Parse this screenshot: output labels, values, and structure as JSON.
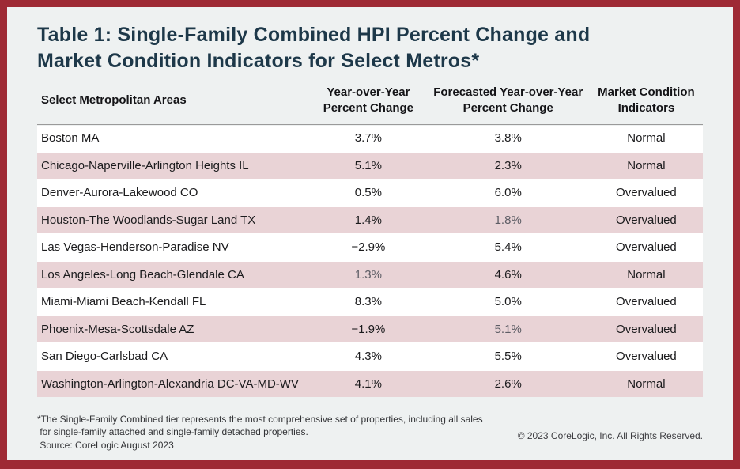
{
  "colors": {
    "frame_border": "#9e2a35",
    "page_background": "#eef1f1",
    "row_white": "#ffffff",
    "row_pink": "#e9d3d6",
    "title_navy": "#1d3849",
    "text_dark": "#1b1b1d",
    "text_muted": "#5d5d65",
    "header_rule": "#9a9a9a"
  },
  "title": "Table 1: Single-Family Combined HPI Percent Change and\nMarket Condition Indicators for Select Metros*",
  "table": {
    "columns": [
      "Select Metropolitan Areas",
      "Year-over-Year\nPercent Change",
      "Forecasted Year-over-Year\nPercent Change",
      "Market Condition\nIndicators"
    ],
    "rows": [
      {
        "metro": "Boston MA",
        "yoy": "3.7%",
        "forecast": "3.8%",
        "indicator": "Normal",
        "yoy_muted": false,
        "forecast_muted": false
      },
      {
        "metro": "Chicago-Naperville-Arlington Heights IL",
        "yoy": "5.1%",
        "forecast": "2.3%",
        "indicator": "Normal",
        "yoy_muted": false,
        "forecast_muted": false
      },
      {
        "metro": "Denver-Aurora-Lakewood CO",
        "yoy": "0.5%",
        "forecast": "6.0%",
        "indicator": "Overvalued",
        "yoy_muted": false,
        "forecast_muted": false
      },
      {
        "metro": "Houston-The Woodlands-Sugar Land TX",
        "yoy": "1.4%",
        "forecast": "1.8%",
        "indicator": "Overvalued",
        "yoy_muted": false,
        "forecast_muted": true
      },
      {
        "metro": "Las Vegas-Henderson-Paradise NV",
        "yoy": "−2.9%",
        "forecast": "5.4%",
        "indicator": "Overvalued",
        "yoy_muted": false,
        "forecast_muted": false
      },
      {
        "metro": "Los Angeles-Long Beach-Glendale CA",
        "yoy": "1.3%",
        "forecast": "4.6%",
        "indicator": "Normal",
        "yoy_muted": true,
        "forecast_muted": false
      },
      {
        "metro": "Miami-Miami Beach-Kendall FL",
        "yoy": "8.3%",
        "forecast": "5.0%",
        "indicator": "Overvalued",
        "yoy_muted": false,
        "forecast_muted": false
      },
      {
        "metro": "Phoenix-Mesa-Scottsdale AZ",
        "yoy": "−1.9%",
        "forecast": "5.1%",
        "indicator": "Overvalued",
        "yoy_muted": false,
        "forecast_muted": true
      },
      {
        "metro": "San Diego-Carlsbad CA",
        "yoy": "4.3%",
        "forecast": "5.5%",
        "indicator": "Overvalued",
        "yoy_muted": false,
        "forecast_muted": false
      },
      {
        "metro": "Washington-Arlington-Alexandria DC-VA-MD-WV",
        "yoy": "4.1%",
        "forecast": "2.6%",
        "indicator": "Normal",
        "yoy_muted": false,
        "forecast_muted": false
      }
    ]
  },
  "footer": {
    "note": "*The Single-Family Combined tier represents the most comprehensive set of properties, including all sales\n for single-family attached and single-family detached properties.\n Source: CoreLogic August 2023",
    "copyright": "© 2023 CoreLogic, Inc. All Rights Reserved."
  },
  "chart_data": {
    "type": "table",
    "title": "Table 1: Single-Family Combined HPI Percent Change and Market Condition Indicators for Select Metros*",
    "columns": [
      "Select Metropolitan Areas",
      "Year-over-Year Percent Change",
      "Forecasted Year-over-Year Percent Change",
      "Market Condition Indicators"
    ],
    "rows": [
      [
        "Boston MA",
        "3.7%",
        "3.8%",
        "Normal"
      ],
      [
        "Chicago-Naperville-Arlington Heights IL",
        "5.1%",
        "2.3%",
        "Normal"
      ],
      [
        "Denver-Aurora-Lakewood CO",
        "0.5%",
        "6.0%",
        "Overvalued"
      ],
      [
        "Houston-The Woodlands-Sugar Land TX",
        "1.4%",
        "1.8%",
        "Overvalued"
      ],
      [
        "Las Vegas-Henderson-Paradise NV",
        "−2.9%",
        "5.4%",
        "Overvalued"
      ],
      [
        "Los Angeles-Long Beach-Glendale CA",
        "1.3%",
        "4.6%",
        "Normal"
      ],
      [
        "Miami-Miami Beach-Kendall FL",
        "8.3%",
        "5.0%",
        "Overvalued"
      ],
      [
        "Phoenix-Mesa-Scottsdale AZ",
        "−1.9%",
        "5.1%",
        "Overvalued"
      ],
      [
        "San Diego-Carlsbad CA",
        "4.3%",
        "5.5%",
        "Overvalued"
      ],
      [
        "Washington-Arlington-Alexandria DC-VA-MD-WV",
        "4.1%",
        "2.6%",
        "Normal"
      ]
    ],
    "source": "Source: CoreLogic August 2023",
    "footnote": "*The Single-Family Combined tier represents the most comprehensive set of properties, including all sales for single-family attached and single-family detached properties."
  }
}
